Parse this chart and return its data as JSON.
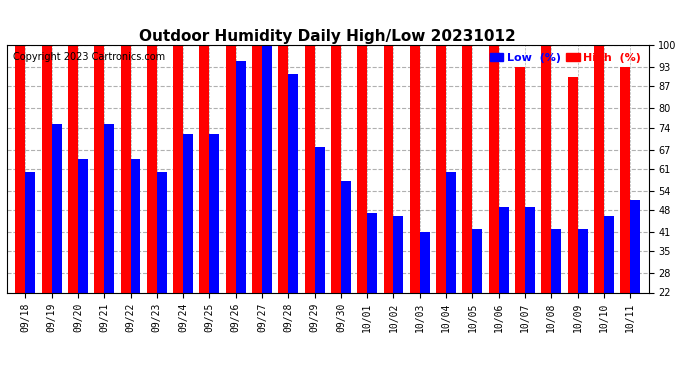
{
  "title": "Outdoor Humidity Daily High/Low 20231012",
  "copyright": "Copyright 2023 Cartronics.com",
  "legend_low": "Low  (%)",
  "legend_high": "High  (%)",
  "dates": [
    "09/18",
    "09/19",
    "09/20",
    "09/21",
    "09/22",
    "09/23",
    "09/24",
    "09/25",
    "09/26",
    "09/27",
    "09/28",
    "09/29",
    "09/30",
    "10/01",
    "10/02",
    "10/03",
    "10/04",
    "10/05",
    "10/06",
    "10/07",
    "10/08",
    "10/09",
    "10/10",
    "10/11"
  ],
  "high": [
    100,
    100,
    100,
    100,
    100,
    100,
    100,
    100,
    100,
    100,
    100,
    100,
    100,
    100,
    100,
    100,
    100,
    100,
    100,
    93,
    100,
    90,
    100,
    93
  ],
  "low": [
    60,
    75,
    64,
    75,
    64,
    60,
    72,
    72,
    95,
    100,
    91,
    68,
    57,
    47,
    46,
    41,
    60,
    42,
    49,
    49,
    42,
    42,
    46,
    51
  ],
  "bar_width": 0.38,
  "ylim_min": 22,
  "ylim_max": 100,
  "yticks": [
    22,
    28,
    35,
    41,
    48,
    54,
    61,
    67,
    74,
    80,
    87,
    93,
    100
  ],
  "high_color": "#ff0000",
  "low_color": "#0000ff",
  "bg_color": "#ffffff",
  "grid_color": "#b0b0b0",
  "title_fontsize": 11,
  "tick_fontsize": 7,
  "legend_fontsize": 8,
  "copyright_fontsize": 7
}
